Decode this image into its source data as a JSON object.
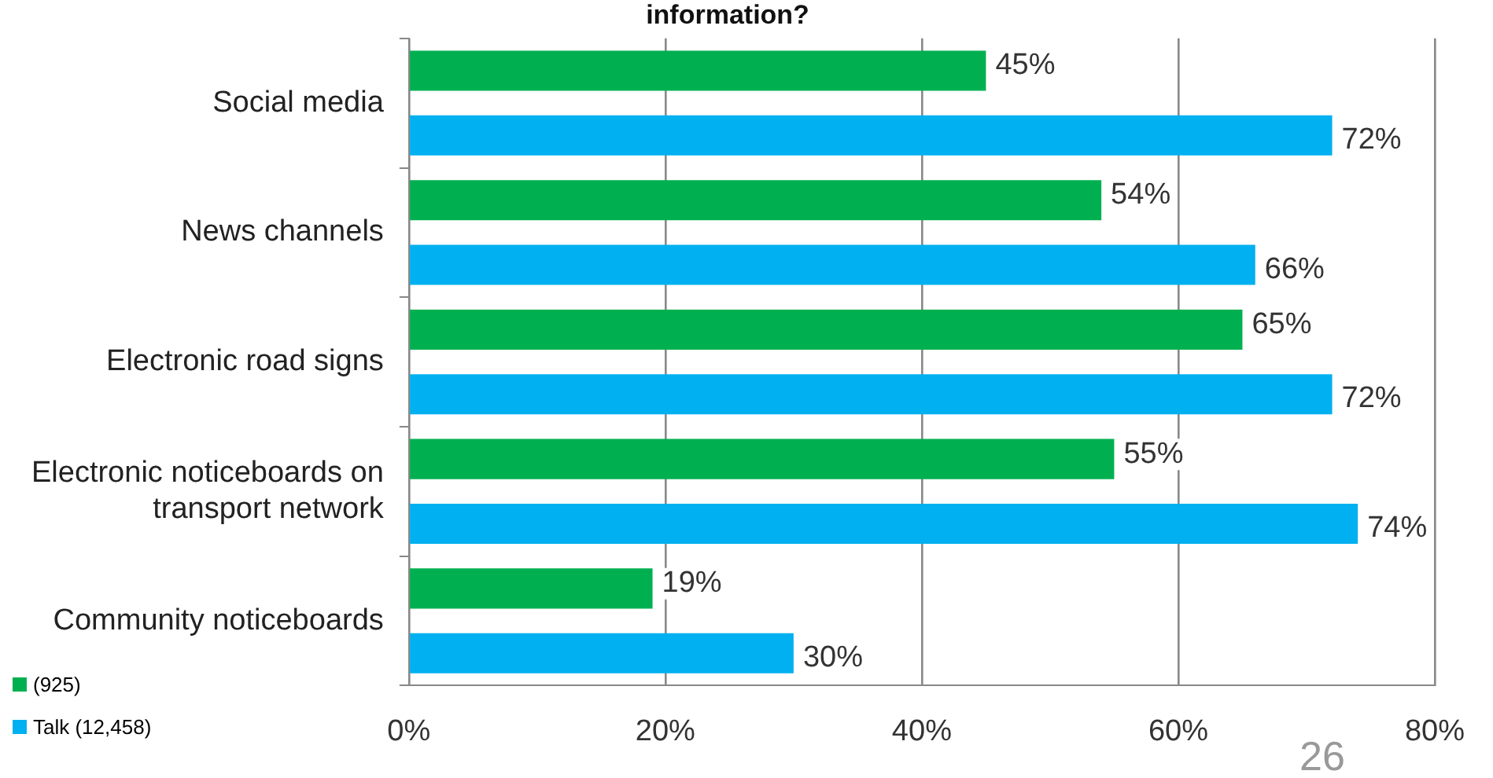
{
  "chart_data": {
    "type": "bar",
    "orientation": "horizontal",
    "title": "information?",
    "categories": [
      "Social media",
      "News channels",
      "Electronic road signs",
      "Electronic noticeboards on transport network",
      "Community noticeboards"
    ],
    "series": [
      {
        "name": "(925)",
        "color": "#00b050",
        "values": [
          45,
          54,
          65,
          55,
          19
        ],
        "value_labels": [
          "45%",
          "54%",
          "65%",
          "55%",
          "19%"
        ]
      },
      {
        "name": "Talk (12,458)",
        "color": "#00b0f0",
        "values": [
          72,
          66,
          72,
          74,
          30
        ],
        "value_labels": [
          "72%",
          "66%",
          "72%",
          "74%",
          "30%"
        ]
      }
    ],
    "xlim": [
      0,
      80
    ],
    "xticks": [
      {
        "value": 0,
        "label": "0%"
      },
      {
        "value": 20,
        "label": "20%"
      },
      {
        "value": 40,
        "label": "40%"
      },
      {
        "value": 60,
        "label": "60%"
      },
      {
        "value": 80,
        "label": "80%"
      }
    ],
    "grid": "x",
    "legend": "bottom left",
    "annotations": [
      "26"
    ]
  }
}
